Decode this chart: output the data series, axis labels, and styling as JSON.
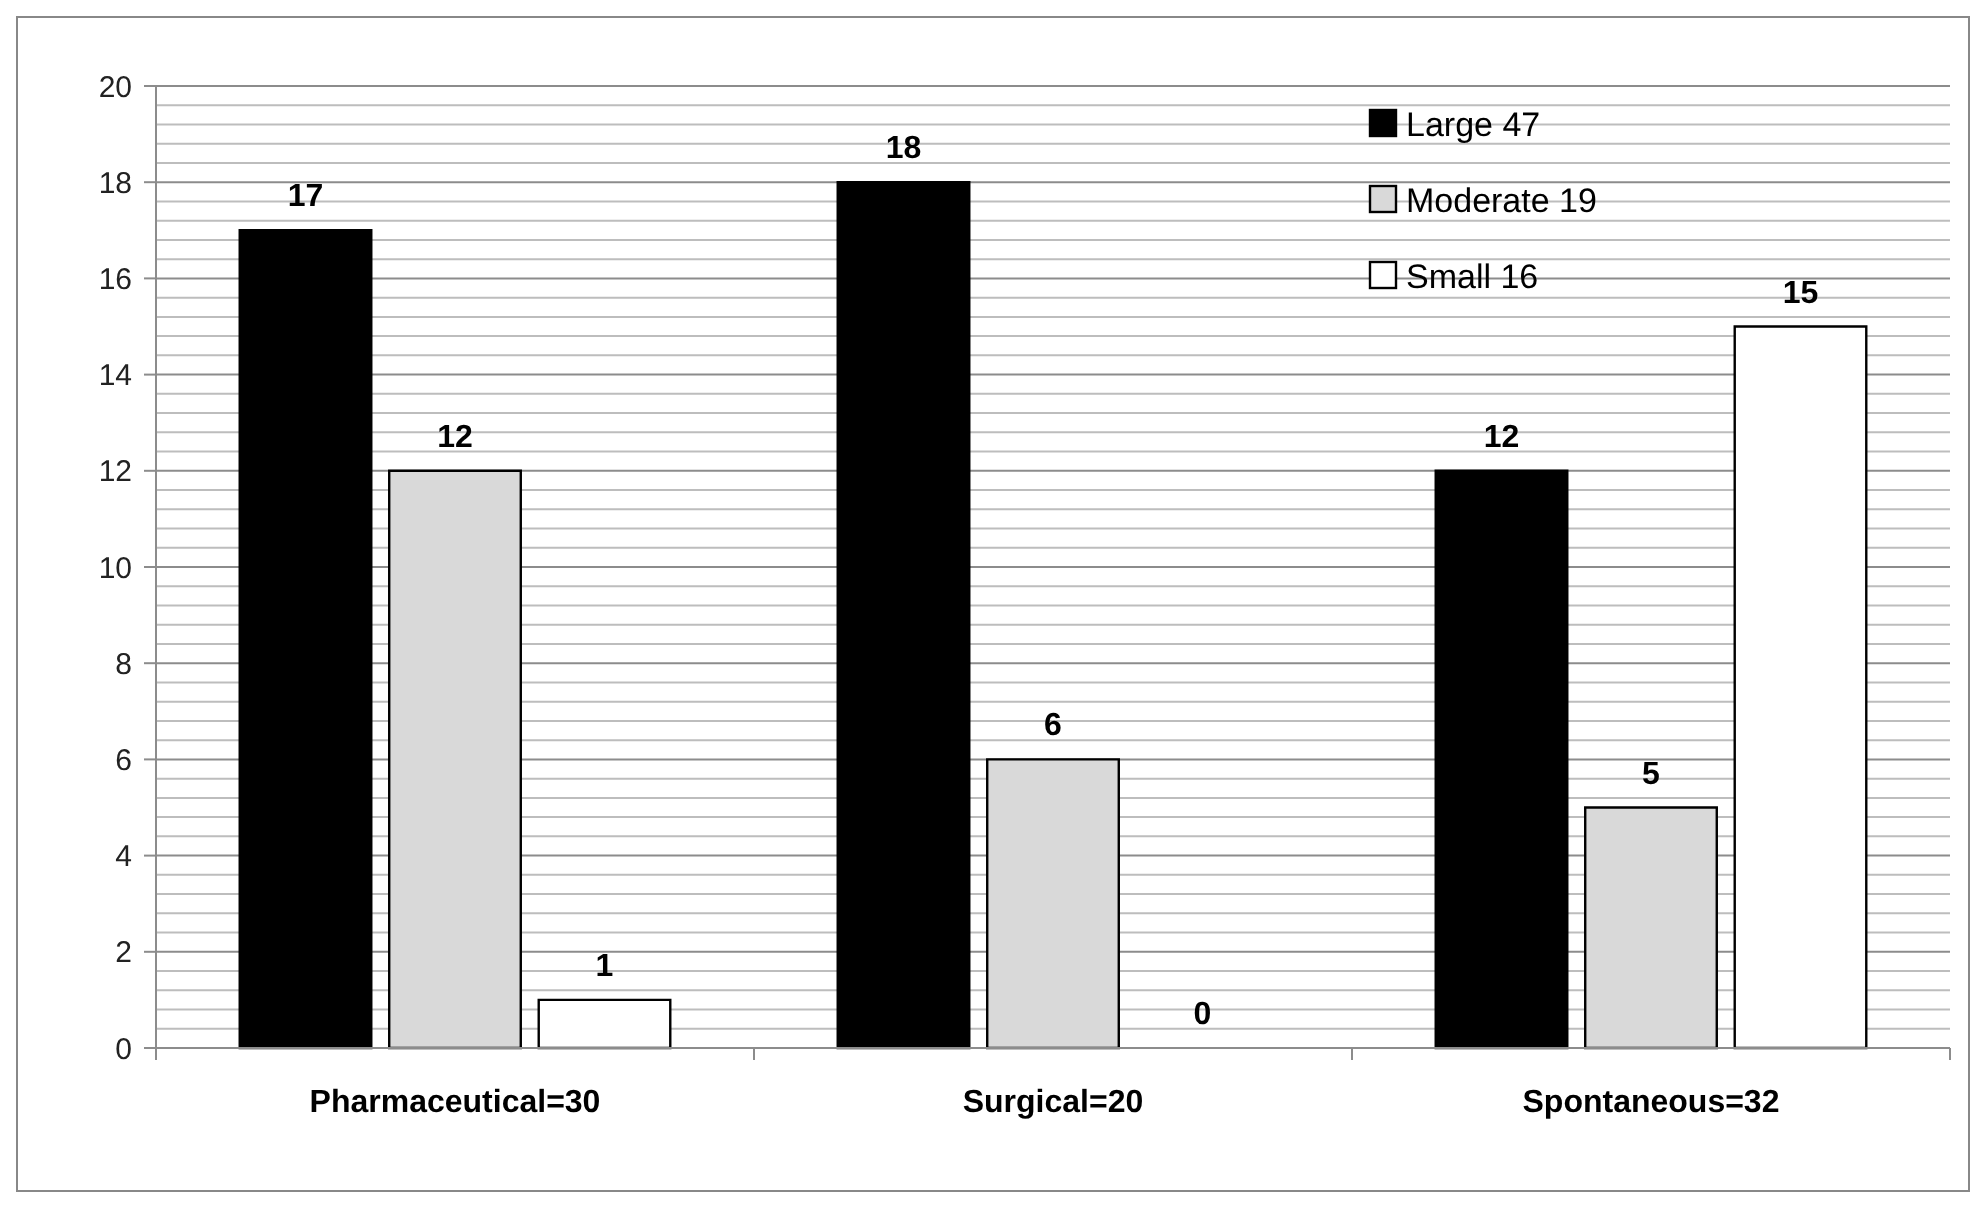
{
  "chart_data": {
    "type": "bar",
    "categories": [
      "Pharmaceutical=30",
      "Surgical=20",
      "Spontaneous=32"
    ],
    "series": [
      {
        "name": "Large 47",
        "color": "#000000",
        "values": [
          17,
          18,
          12
        ]
      },
      {
        "name": "Moderate 19",
        "color": "#d9d9d9",
        "values": [
          12,
          6,
          5
        ]
      },
      {
        "name": "Small 16",
        "color": "#ffffff",
        "values": [
          1,
          0,
          15
        ]
      }
    ],
    "ylim": [
      0,
      20
    ],
    "yticks": [
      0,
      {
        "value": 0.4,
        "label": null
      },
      {
        "value": 0.8,
        "label": null
      },
      {
        "value": 1.2,
        "label": null
      },
      {
        "value": 1.6,
        "label": null
      },
      2,
      {
        "value": 2.4,
        "label": null
      },
      {
        "value": 2.8,
        "label": null
      },
      {
        "value": 3.2,
        "label": null
      },
      {
        "value": 3.6,
        "label": null
      },
      4,
      {
        "value": 4.4,
        "label": null
      },
      {
        "value": 4.8,
        "label": null
      },
      {
        "value": 5.2,
        "label": null
      },
      {
        "value": 5.6,
        "label": null
      },
      6,
      {
        "value": 6.4,
        "label": null
      },
      {
        "value": 6.8,
        "label": null
      },
      {
        "value": 7.2,
        "label": null
      },
      {
        "value": 7.6,
        "label": null
      },
      8,
      {
        "value": 8.4,
        "label": null
      },
      {
        "value": 8.8,
        "label": null
      },
      {
        "value": 9.2,
        "label": null
      },
      {
        "value": 9.6,
        "label": null
      },
      10,
      {
        "value": 10.4,
        "label": null
      },
      {
        "value": 10.8,
        "label": null
      },
      {
        "value": 11.2,
        "label": null
      },
      {
        "value": 11.6,
        "label": null
      },
      12,
      {
        "value": 12.4,
        "label": null
      },
      {
        "value": 12.8,
        "label": null
      },
      {
        "value": 13.2,
        "label": null
      },
      {
        "value": 13.6,
        "label": null
      },
      14,
      {
        "value": 14.4,
        "label": null
      },
      {
        "value": 14.8,
        "label": null
      },
      {
        "value": 15.2,
        "label": null
      },
      {
        "value": 15.6,
        "label": null
      },
      16,
      {
        "value": 16.4,
        "label": null
      },
      {
        "value": 16.8,
        "label": null
      },
      {
        "value": 17.2,
        "label": null
      },
      {
        "value": 17.6,
        "label": null
      },
      18,
      {
        "value": 18.4,
        "label": null
      },
      {
        "value": 18.8,
        "label": null
      },
      {
        "value": 19.2,
        "label": null
      },
      {
        "value": 19.6,
        "label": null
      },
      20
    ],
    "grid": true,
    "legend": "top right",
    "data_labels": true
  }
}
